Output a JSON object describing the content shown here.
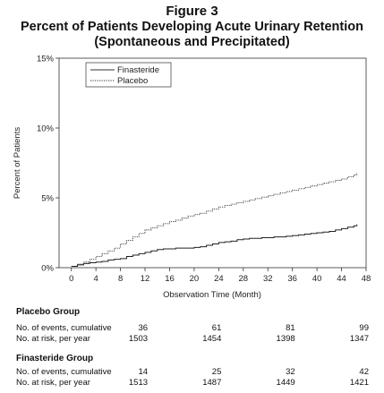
{
  "figure_label": "Figure 3",
  "title_line1": "Percent of Patients Developing Acute Urinary Retention",
  "title_line2": "(Spontaneous and Precipitated)",
  "chart_data": {
    "type": "line",
    "title": "Percent of Patients Developing Acute Urinary Retention (Spontaneous and Precipitated)",
    "xlabel": "Observation Time (Month)",
    "ylabel": "Percent of Patients",
    "xlim": [
      -2,
      48
    ],
    "ylim": [
      0,
      15
    ],
    "x_ticks": [
      "0",
      "4",
      "8",
      "12",
      "16",
      "20",
      "24",
      "28",
      "32",
      "36",
      "40",
      "44",
      "48"
    ],
    "y_ticks": [
      "0%",
      "5%",
      "10%",
      "15%"
    ],
    "grid": false,
    "legend_position": "top-left",
    "series": [
      {
        "name": "Finasteride",
        "style": "solid",
        "x": [
          0,
          1,
          2,
          3,
          4,
          5,
          6,
          7,
          8,
          9,
          10,
          11,
          12,
          13,
          14,
          15,
          16,
          17,
          18,
          19,
          20,
          21,
          22,
          23,
          24,
          25,
          26,
          27,
          28,
          29,
          30,
          31,
          32,
          33,
          34,
          35,
          36,
          37,
          38,
          39,
          40,
          41,
          42,
          43,
          44,
          45,
          46,
          46.5
        ],
        "y": [
          0.1,
          0.2,
          0.3,
          0.35,
          0.4,
          0.45,
          0.55,
          0.6,
          0.65,
          0.8,
          0.9,
          1.0,
          1.1,
          1.2,
          1.3,
          1.35,
          1.35,
          1.4,
          1.4,
          1.4,
          1.45,
          1.5,
          1.6,
          1.7,
          1.8,
          1.85,
          1.9,
          2.0,
          2.05,
          2.1,
          2.1,
          2.15,
          2.15,
          2.2,
          2.2,
          2.25,
          2.3,
          2.35,
          2.4,
          2.45,
          2.5,
          2.55,
          2.6,
          2.7,
          2.8,
          2.9,
          3.0,
          3.1
        ]
      },
      {
        "name": "Placebo",
        "style": "dotted",
        "x": [
          0,
          1,
          2,
          3,
          4,
          5,
          6,
          7,
          8,
          9,
          10,
          11,
          12,
          13,
          14,
          15,
          16,
          17,
          18,
          19,
          20,
          21,
          22,
          23,
          24,
          25,
          26,
          27,
          28,
          29,
          30,
          31,
          32,
          33,
          34,
          35,
          36,
          37,
          38,
          39,
          40,
          41,
          42,
          43,
          44,
          45,
          46,
          46.5
        ],
        "y": [
          0.1,
          0.25,
          0.4,
          0.6,
          0.8,
          1.0,
          1.2,
          1.4,
          1.7,
          1.95,
          2.2,
          2.45,
          2.7,
          2.85,
          3.0,
          3.15,
          3.3,
          3.4,
          3.55,
          3.7,
          3.8,
          3.9,
          4.05,
          4.2,
          4.35,
          4.45,
          4.55,
          4.65,
          4.75,
          4.85,
          4.95,
          5.05,
          5.15,
          5.25,
          5.35,
          5.45,
          5.55,
          5.65,
          5.75,
          5.85,
          5.95,
          6.05,
          6.15,
          6.25,
          6.35,
          6.5,
          6.65,
          6.8
        ]
      }
    ]
  },
  "table": {
    "columns_months": [
      12,
      24,
      36,
      48
    ],
    "groups": [
      {
        "name": "Placebo Group",
        "rows": [
          {
            "label": "No. of events, cumulative",
            "values": [
              "36",
              "61",
              "81",
              "99"
            ]
          },
          {
            "label": "No. at risk, per year",
            "values": [
              "1503",
              "1454",
              "1398",
              "1347"
            ]
          }
        ]
      },
      {
        "name": "Finasteride Group",
        "rows": [
          {
            "label": "No. of events, cumulative",
            "values": [
              "14",
              "25",
              "32",
              "42"
            ]
          },
          {
            "label": "No. at risk, per year",
            "values": [
              "1513",
              "1487",
              "1449",
              "1421"
            ]
          }
        ]
      }
    ]
  }
}
